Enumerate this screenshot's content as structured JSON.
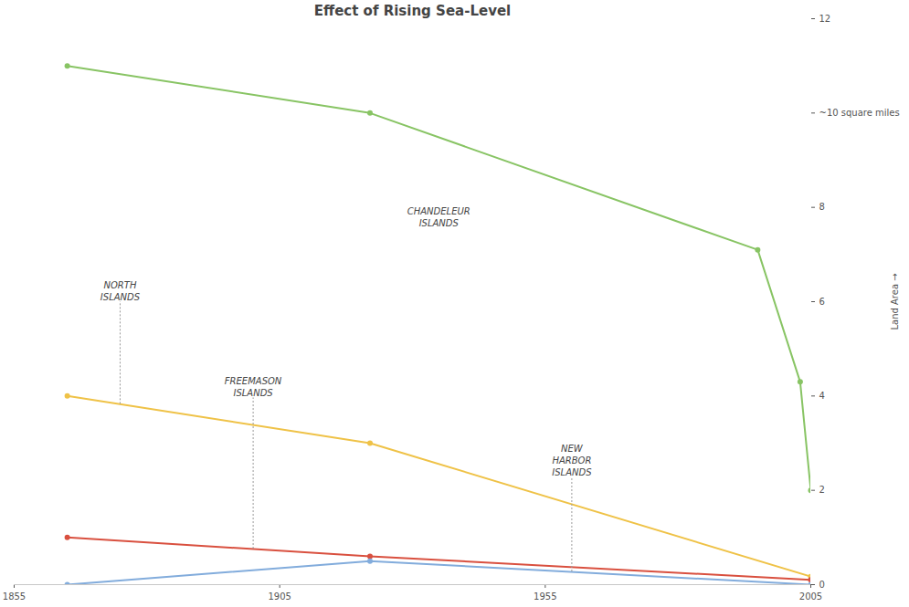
{
  "chart_data": {
    "type": "line",
    "title": "Effect of Rising Sea-Level",
    "y_label": "Land Area",
    "xlim": [
      1855,
      2005
    ],
    "xticks": [
      1855,
      1905,
      1955,
      2005
    ],
    "ylim": [
      0,
      12
    ],
    "yticks": [
      0,
      2,
      4,
      6,
      8,
      {
        "value": 10,
        "label": "~10 square miles"
      },
      12
    ],
    "grid": false,
    "series": [
      {
        "name": "CHANDELEUR ISLANDS",
        "color": "#88c464",
        "marker": "circle",
        "x": [
          1865,
          1922,
          1995,
          2003,
          2005
        ],
        "values": [
          11.0,
          10.0,
          7.1,
          4.3,
          2.0
        ]
      },
      {
        "name": "NORTH ISLANDS",
        "color": "#efc247",
        "marker": "circle",
        "x": [
          1865,
          1922,
          2005
        ],
        "values": [
          4.0,
          3.0,
          0.17
        ]
      },
      {
        "name": "FREEMASON ISLANDS",
        "color": "#d9503f",
        "marker": "circle",
        "x": [
          1865,
          1922,
          2005
        ],
        "values": [
          1.0,
          0.6,
          0.1
        ]
      },
      {
        "name": "NEW HARBOR ISLANDS",
        "color": "#82acdc",
        "marker": "circle",
        "x": [
          1865,
          1922,
          2005
        ],
        "values": [
          0.0,
          0.5,
          0.0
        ]
      }
    ]
  }
}
